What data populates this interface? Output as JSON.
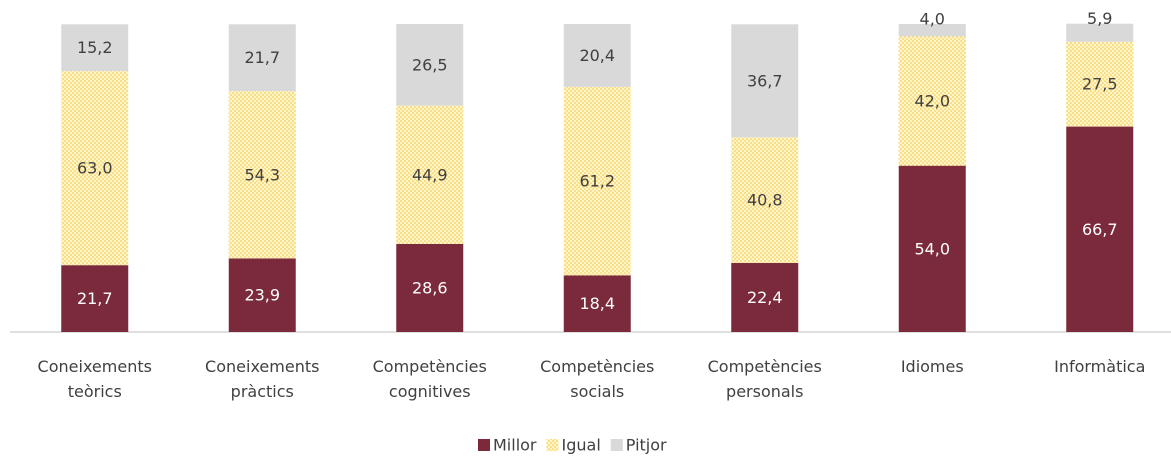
{
  "chart_data": {
    "type": "stacked_bar",
    "categories": [
      "Coneixements teòrics",
      "Coneixements pràctics",
      "Competències cognitives",
      "Competències socials",
      "Competències personals",
      "Idiomes",
      "Informàtica"
    ],
    "series": [
      {
        "name": "Millor",
        "color": "#7b2a3b",
        "values": [
          21.7,
          23.9,
          28.6,
          18.4,
          22.4,
          54.0,
          66.7
        ],
        "value_labels": [
          "21,7",
          "23,9",
          "28,6",
          "18,4",
          "22,4",
          "54,0",
          "66,7"
        ]
      },
      {
        "name": "Igual",
        "color": "#f7c948",
        "values": [
          63.0,
          54.3,
          44.9,
          61.2,
          40.8,
          42.0,
          27.5
        ],
        "value_labels": [
          "63,0",
          "54,3",
          "44,9",
          "61,2",
          "40,8",
          "42,0",
          "27,5"
        ]
      },
      {
        "name": "Pitjor",
        "color": "#d9d9d9",
        "values": [
          15.2,
          21.7,
          26.5,
          20.4,
          36.7,
          4.0,
          5.9
        ],
        "value_labels": [
          "15,2",
          "21,7",
          "26,5",
          "20,4",
          "36,7",
          "4,0",
          "5,9"
        ]
      }
    ],
    "ylim": [
      0,
      100
    ],
    "legend": "bottom"
  }
}
